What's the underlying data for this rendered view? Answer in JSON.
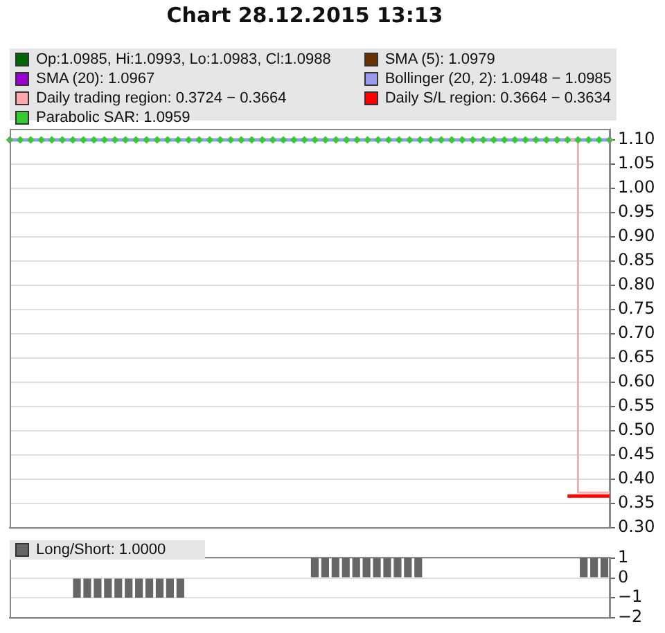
{
  "chart_data": [
    {
      "type": "line",
      "title": "Chart 28.12.2015 13:13",
      "categories": [
        null,
        null,
        null,
        null,
        null,
        null,
        null,
        null,
        null,
        null,
        null,
        null,
        null,
        null,
        null,
        null,
        null,
        null,
        null,
        null,
        null,
        null,
        null,
        null,
        null,
        null,
        null,
        null,
        null,
        null,
        null,
        null,
        null,
        null,
        null,
        null,
        null,
        null,
        null,
        null,
        null,
        null,
        null,
        null,
        null,
        null,
        null,
        null,
        null,
        null,
        null,
        null,
        null,
        null,
        null,
        null,
        null,
        null
      ],
      "series": [
        {
          "name": "Op:1.0985, Hi:1.0993, Lo:1.0983, Cl:1.0988",
          "type": "line",
          "color": "#006600",
          "values": [
            null,
            null,
            null,
            null,
            null,
            null,
            null,
            null,
            null,
            null,
            null,
            null,
            null,
            null,
            null,
            null,
            null,
            null,
            null,
            null,
            null,
            null,
            null,
            null,
            null,
            null,
            null,
            null,
            null,
            null,
            null,
            null,
            null,
            null,
            null,
            null,
            null,
            null,
            null,
            null,
            null,
            null,
            null,
            null,
            null,
            null,
            null,
            null,
            null,
            null,
            null,
            null,
            null,
            null,
            null,
            null,
            null,
            null
          ]
        },
        {
          "name": "SMA (5): 1.0979",
          "type": "line",
          "color": "#663300",
          "values": [
            null,
            null,
            null,
            null,
            null,
            null,
            null,
            null,
            null,
            null,
            null,
            null,
            null,
            null,
            null,
            null,
            null,
            null,
            null,
            null,
            null,
            null,
            null,
            null,
            null,
            null,
            null,
            null,
            null,
            null,
            null,
            null,
            null,
            null,
            null,
            null,
            null,
            null,
            null,
            null,
            null,
            null,
            null,
            null,
            null,
            null,
            null,
            null,
            null,
            null,
            null,
            null,
            null,
            null,
            null,
            null,
            null,
            null
          ]
        },
        {
          "name": "SMA (20): 1.0967",
          "type": "line",
          "color": "#9900cc",
          "values": [
            null,
            null,
            null,
            null,
            null,
            null,
            null,
            null,
            null,
            null,
            null,
            null,
            null,
            null,
            null,
            null,
            null,
            null,
            null,
            null,
            null,
            null,
            null,
            null,
            null,
            null,
            null,
            null,
            null,
            null,
            null,
            null,
            null,
            null,
            null,
            null,
            null,
            null,
            null,
            null,
            null,
            null,
            null,
            null,
            null,
            null,
            null,
            null,
            null,
            null,
            null,
            null,
            null,
            null,
            null,
            null,
            null,
            null
          ]
        },
        {
          "name": "Bollinger (20, 2): 1.0948 − 1.0985",
          "type": "line",
          "color": "#9999ee",
          "values": [
            1.1,
            1.1,
            1.1,
            1.1,
            1.1,
            1.1,
            1.1,
            1.1,
            1.1,
            1.1,
            1.1,
            1.1,
            1.1,
            1.1,
            1.1,
            1.1,
            1.1,
            1.1,
            1.1,
            1.1,
            1.1,
            1.1,
            1.1,
            1.1,
            1.1,
            1.1,
            1.1,
            1.1,
            1.1,
            1.1,
            1.1,
            1.1,
            1.1,
            1.1,
            1.1,
            1.1,
            1.1,
            1.1,
            1.1,
            1.1,
            1.1,
            1.1,
            1.1,
            1.1,
            1.1,
            1.1,
            1.1,
            1.1,
            1.1,
            1.1,
            1.1,
            1.1,
            1.1,
            1.1,
            1.1,
            1.1,
            1.1,
            1.1
          ]
        },
        {
          "name": "Daily trading region: 0.3724 − 0.3664",
          "type": "step",
          "color": "#ffaaaa",
          "values": [
            null,
            null,
            null,
            null,
            null,
            null,
            null,
            null,
            null,
            null,
            null,
            null,
            null,
            null,
            null,
            null,
            null,
            null,
            null,
            null,
            null,
            null,
            null,
            null,
            null,
            null,
            null,
            null,
            null,
            null,
            null,
            null,
            null,
            null,
            null,
            null,
            null,
            null,
            null,
            null,
            null,
            null,
            null,
            null,
            null,
            null,
            null,
            null,
            null,
            null,
            null,
            null,
            null,
            1.1,
            0.372,
            0.372,
            0.372,
            0.372
          ]
        },
        {
          "name": "Daily S/L region: 0.3664 − 0.3634",
          "type": "line",
          "color": "#ff0000",
          "values": [
            null,
            null,
            null,
            null,
            null,
            null,
            null,
            null,
            null,
            null,
            null,
            null,
            null,
            null,
            null,
            null,
            null,
            null,
            null,
            null,
            null,
            null,
            null,
            null,
            null,
            null,
            null,
            null,
            null,
            null,
            null,
            null,
            null,
            null,
            null,
            null,
            null,
            null,
            null,
            null,
            null,
            null,
            null,
            null,
            null,
            null,
            null,
            null,
            null,
            null,
            null,
            null,
            null,
            0.365,
            0.365,
            0.365,
            0.365,
            0.365
          ]
        },
        {
          "name": "Parabolic SAR: 1.0959",
          "type": "scatter",
          "marker": "diamond",
          "color": "#33cc33",
          "values": [
            1.1,
            1.1,
            1.1,
            1.1,
            1.1,
            1.1,
            1.1,
            1.1,
            1.1,
            1.1,
            1.1,
            1.1,
            1.1,
            1.1,
            1.1,
            1.1,
            1.1,
            1.1,
            1.1,
            1.1,
            1.1,
            1.1,
            1.1,
            1.1,
            1.1,
            1.1,
            1.1,
            1.1,
            1.1,
            1.1,
            1.1,
            1.1,
            1.1,
            1.1,
            1.1,
            1.1,
            1.1,
            1.1,
            1.1,
            1.1,
            1.1,
            1.1,
            1.1,
            1.1,
            1.1,
            1.1,
            1.1,
            1.1,
            1.1,
            1.1,
            1.1,
            1.1,
            1.1,
            1.1,
            1.1,
            1.1,
            1.1,
            1.1
          ]
        }
      ],
      "ylim": [
        0.3,
        1.12
      ],
      "yticks": [
        {
          "value": 0.3,
          "label": "0.30"
        },
        {
          "value": 0.35,
          "label": "0.35"
        },
        {
          "value": 0.4,
          "label": "0.40"
        },
        {
          "value": 0.45,
          "label": "0.45"
        },
        {
          "value": 0.5,
          "label": "0.50"
        },
        {
          "value": 0.55,
          "label": "0.55"
        },
        {
          "value": 0.6,
          "label": "0.60"
        },
        {
          "value": 0.65,
          "label": "0.65"
        },
        {
          "value": 0.7,
          "label": "0.70"
        },
        {
          "value": 0.75,
          "label": "0.75"
        },
        {
          "value": 0.8,
          "label": "0.80"
        },
        {
          "value": 0.85,
          "label": "0.85"
        },
        {
          "value": 0.9,
          "label": "0.90"
        },
        {
          "value": 0.95,
          "label": "0.95"
        },
        {
          "value": 1.0,
          "label": "1.00"
        },
        {
          "value": 1.05,
          "label": "1.05"
        },
        {
          "value": 1.1,
          "label": "1.10"
        }
      ],
      "grid": "y",
      "legend": "top left",
      "tick_labels": "y"
    },
    {
      "type": "bar",
      "categories": [
        null,
        null,
        null,
        null,
        null,
        null,
        null,
        null,
        null,
        null,
        null,
        null,
        null,
        null,
        null,
        null,
        null,
        null,
        null,
        null,
        null,
        null,
        null,
        null,
        null,
        null,
        null,
        null,
        null,
        null,
        null,
        null,
        null,
        null,
        null,
        null,
        null,
        null,
        null,
        null,
        null,
        null,
        null,
        null,
        null,
        null,
        null,
        null,
        null,
        null,
        null,
        null,
        null,
        null,
        null,
        null,
        null,
        null
      ],
      "series": [
        {
          "name": "Long/Short: 1.0000",
          "color": "#666666",
          "values": [
            null,
            null,
            null,
            null,
            null,
            null,
            -1,
            -1,
            -1,
            -1,
            -1,
            -1,
            -1,
            -1,
            -1,
            -1,
            -1,
            null,
            null,
            null,
            null,
            null,
            null,
            null,
            null,
            null,
            null,
            null,
            null,
            1,
            1,
            1,
            1,
            1,
            1,
            1,
            1,
            1,
            1,
            1,
            null,
            null,
            null,
            null,
            null,
            null,
            null,
            null,
            null,
            null,
            null,
            null,
            null,
            null,
            null,
            1,
            1,
            1
          ]
        }
      ],
      "ylim": [
        -2,
        1
      ],
      "yticks": [
        {
          "value": -2,
          "label": "−2"
        },
        {
          "value": -1,
          "label": "−1"
        },
        {
          "value": 0,
          "label": "0"
        },
        {
          "value": 1,
          "label": "1"
        }
      ],
      "grid": "y",
      "legend": "top left",
      "tick_labels": "y"
    }
  ]
}
